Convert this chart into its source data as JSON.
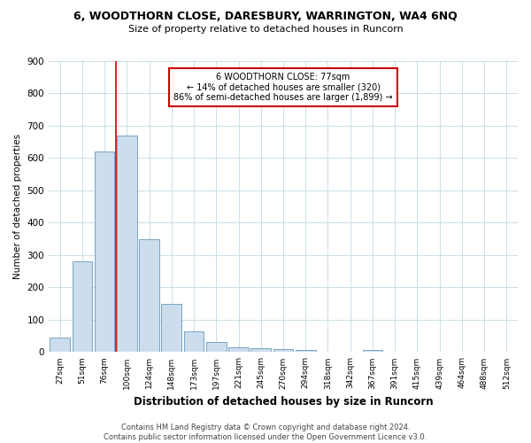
{
  "title": "6, WOODTHORN CLOSE, DARESBURY, WARRINGTON, WA4 6NQ",
  "subtitle": "Size of property relative to detached houses in Runcorn",
  "xlabel": "Distribution of detached houses by size in Runcorn",
  "ylabel": "Number of detached properties",
  "categories": [
    "27sqm",
    "51sqm",
    "76sqm",
    "100sqm",
    "124sqm",
    "148sqm",
    "173sqm",
    "197sqm",
    "221sqm",
    "245sqm",
    "270sqm",
    "294sqm",
    "318sqm",
    "342sqm",
    "367sqm",
    "391sqm",
    "415sqm",
    "439sqm",
    "464sqm",
    "488sqm",
    "512sqm"
  ],
  "values": [
    44,
    280,
    620,
    670,
    348,
    148,
    65,
    30,
    15,
    12,
    10,
    8,
    0,
    0,
    8,
    0,
    0,
    0,
    0,
    0,
    0
  ],
  "bar_color": "#ccdded",
  "bar_edge_color": "#6699bb",
  "property_line_x": 2.5,
  "property_line_color": "#cc0000",
  "annotation_text": "6 WOODTHORN CLOSE: 77sqm\n← 14% of detached houses are smaller (320)\n86% of semi-detached houses are larger (1,899) →",
  "annotation_box_color": "#ffffff",
  "annotation_box_edge_color": "#cc0000",
  "ylim": [
    0,
    900
  ],
  "yticks": [
    0,
    100,
    200,
    300,
    400,
    500,
    600,
    700,
    800,
    900
  ],
  "footer": "Contains HM Land Registry data © Crown copyright and database right 2024.\nContains public sector information licensed under the Open Government Licence v3.0.",
  "background_color": "#ffffff",
  "grid_color": "#ccdde8"
}
